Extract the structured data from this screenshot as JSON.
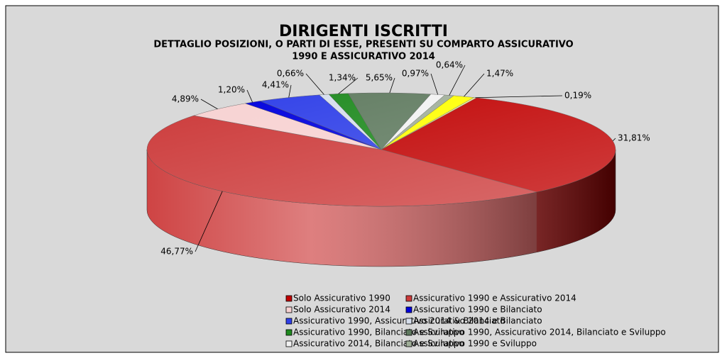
{
  "chart_data": {
    "type": "pie",
    "title": "DIRIGENTI ISCRITTI",
    "subtitle": [
      "DETTAGLIO POSIZIONI, O PARTI DI ESSE, PRESENTI SU COMPARTO ASSICURATIVO",
      "1990 E ASSICURATIVO 2014"
    ],
    "categories": [
      "Solo Assicurativo 1990",
      "Assicurativo 1990 e Assicurativo 2014",
      "Solo Assicurativo 2014",
      "Assicurativo 1990 e Bilanciato",
      "Assicurativo 1990, Assicurativo 2014 & Bilanciato",
      "Assicurativo 2014 e Bilanciato",
      "Assicurativo 1990, Bilanciato e Sviluppo",
      "Assicurativo 1990, Assicurativo 2014, Bilanciato e Sviluppo",
      "Assicurativo 2014, Bilanciato e Sviluppo",
      "Assicurativo 1990 e Sviluppo",
      null,
      null
    ],
    "values": [
      31.81,
      46.77,
      4.89,
      1.2,
      4.41,
      0.66,
      1.34,
      5.65,
      0.97,
      0.64,
      1.47,
      0.19
    ],
    "value_labels": [
      "31,81%",
      "46,77%",
      "4,89%",
      "1,20%",
      "4,41%",
      "0,66%",
      "1,34%",
      "5,65%",
      "0,97%",
      "0,64%",
      "1,47%",
      "0,19%"
    ],
    "colors": [
      "#c00000",
      "#cc3a3a",
      "#f7d2d2",
      "#0000dd",
      "#2f3fe8",
      "#d6deec",
      "#1e8a1e",
      "#5f7a5f",
      "#f2f2f2",
      "#9fae98",
      "#ffff00",
      "#efef9a"
    ],
    "legend": "bottom"
  }
}
